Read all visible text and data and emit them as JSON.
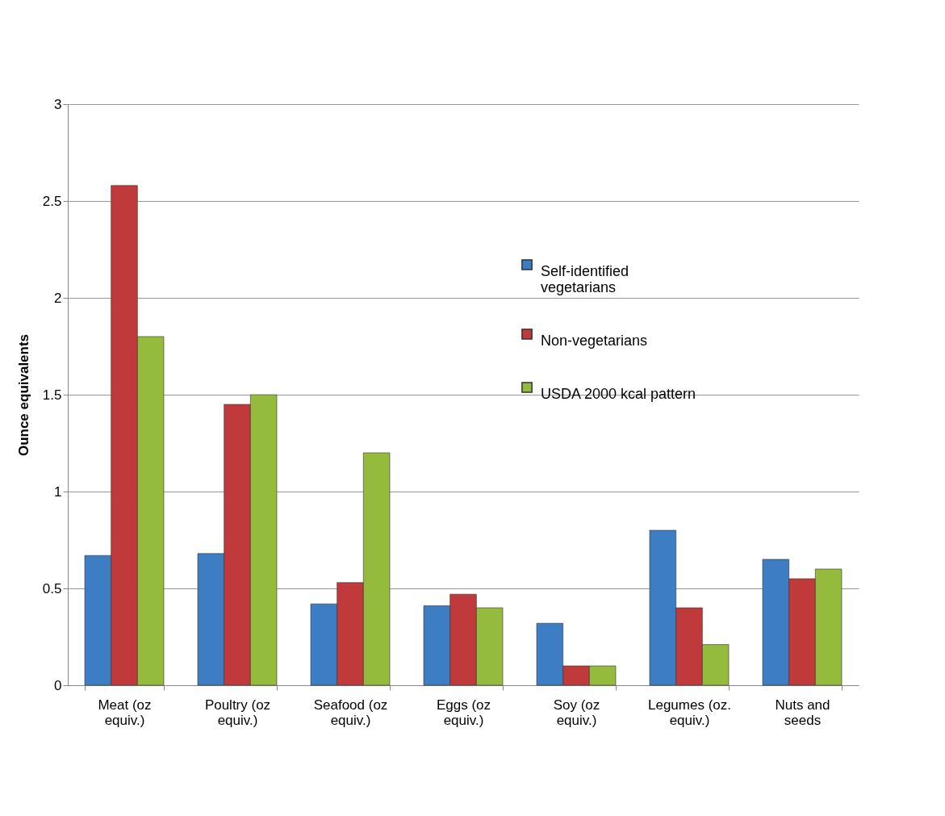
{
  "chart_data": {
    "type": "bar",
    "ylabel": "Ounce equivalents",
    "categories": [
      "Meat (oz equiv.)",
      "Poultry (oz equiv.)",
      "Seafood (oz equiv.)",
      "Eggs (oz equiv.)",
      "Soy (oz equiv.)",
      "Legumes (oz. equiv.)",
      "Nuts and seeds"
    ],
    "series": [
      {
        "name": "Self-identified vegetarians",
        "color": "#3c7dc4",
        "values": [
          0.67,
          0.68,
          0.42,
          0.41,
          0.32,
          0.8,
          0.65
        ]
      },
      {
        "name": "Non-vegetarians",
        "color": "#c0393b",
        "values": [
          2.58,
          1.45,
          0.53,
          0.47,
          0.1,
          0.4,
          0.55
        ]
      },
      {
        "name": "USDA 2000 kcal pattern",
        "color": "#94bb3c",
        "values": [
          1.8,
          1.5,
          1.2,
          0.4,
          0.1,
          0.21,
          0.6
        ]
      }
    ],
    "ylim": [
      0,
      3
    ],
    "yticks": [
      0,
      0.5,
      1,
      1.5,
      2,
      2.5,
      3
    ],
    "grid": "y",
    "legend": "right"
  }
}
